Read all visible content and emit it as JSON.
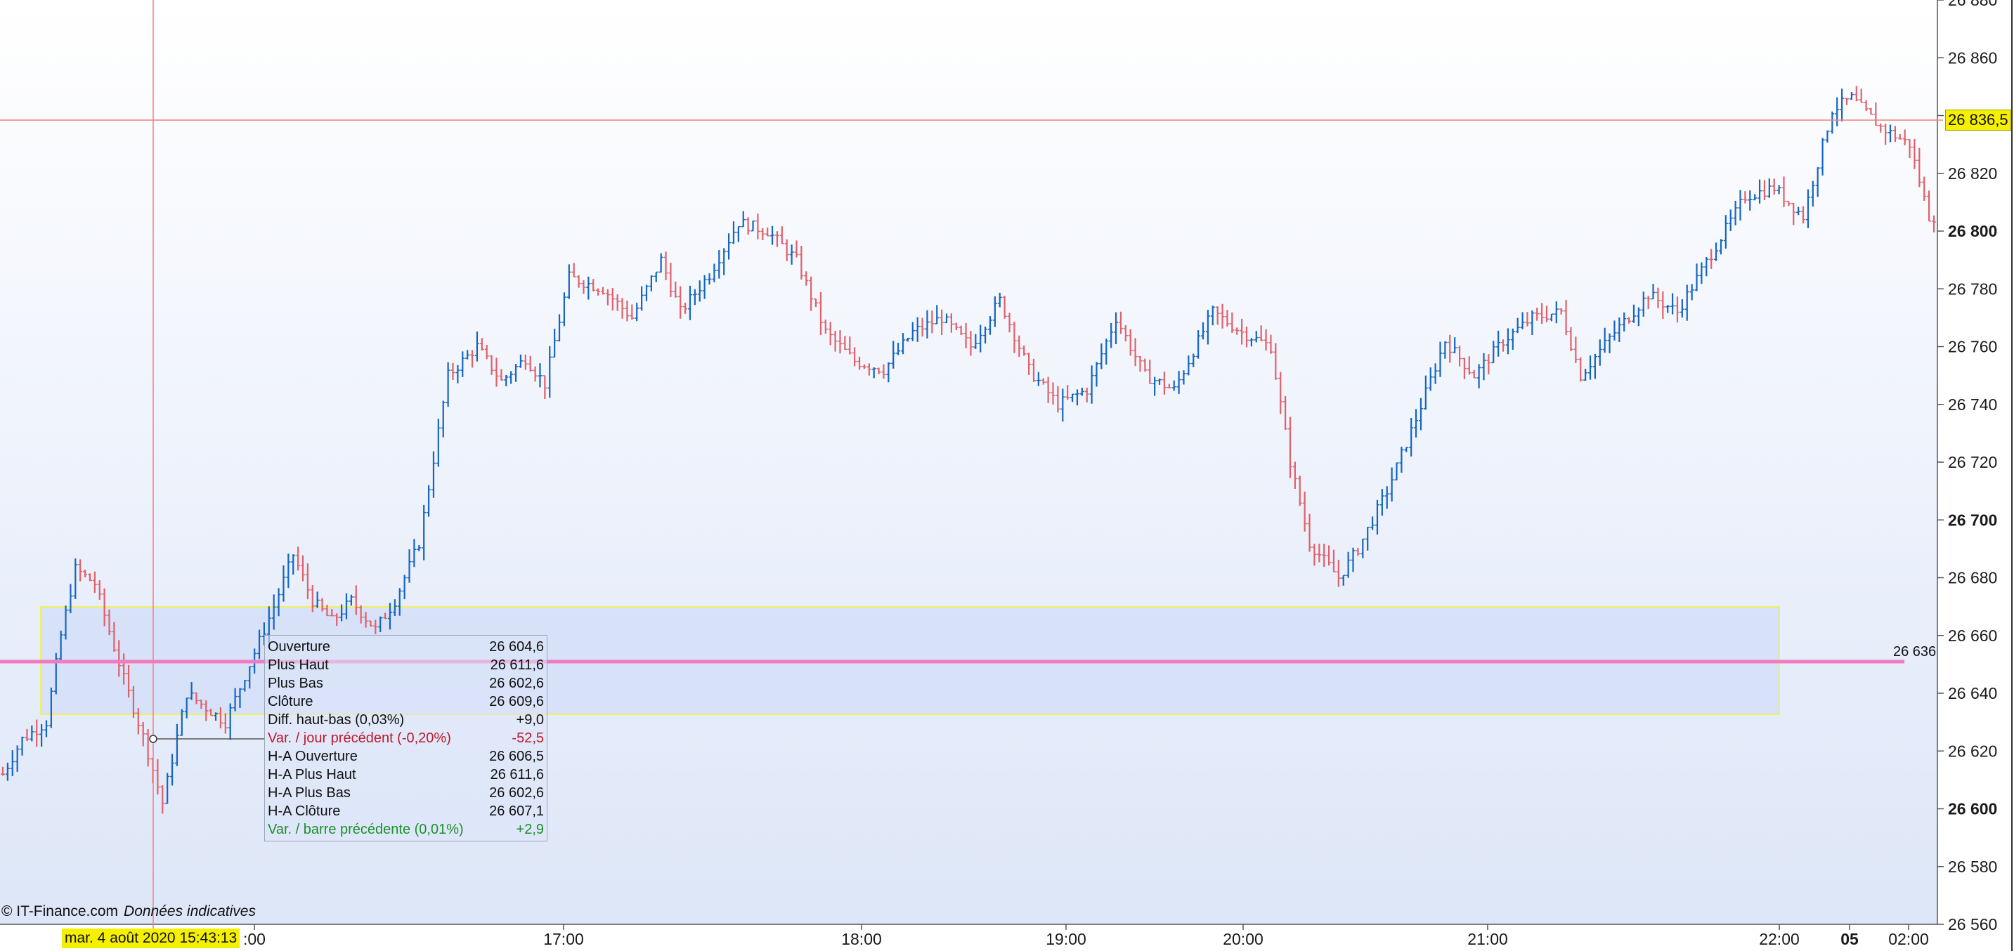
{
  "chart_data": {
    "type": "bar",
    "style": "OHLC bars (blue = up, red = down)",
    "x_ticks": [
      ":00",
      "17:00",
      "18:00",
      "19:00",
      "20:00",
      "21:00",
      "22:00",
      "05",
      "02:00"
    ],
    "x_ticks_bold": [
      "05"
    ],
    "ylim": [
      26560,
      26880
    ],
    "y_ticks": [
      "26 880",
      "26 860",
      "26 840",
      "26 820",
      "26 800",
      "26 780",
      "26 760",
      "26 740",
      "26 720",
      "26 700",
      "26 680",
      "26 660",
      "26 640",
      "26 620",
      "26 600",
      "26 580",
      "26 560"
    ],
    "y_ticks_bold": [
      "26 800",
      "26 700",
      "26 600"
    ],
    "grid": false,
    "up_color": "#1565c0",
    "down_color": "#e0606a",
    "close_path": [
      [
        0,
        26612
      ],
      [
        4,
        26624
      ],
      [
        9,
        26630
      ],
      [
        12,
        26660
      ],
      [
        15,
        26683
      ],
      [
        19,
        26678
      ],
      [
        25,
        26645
      ],
      [
        29,
        26625
      ],
      [
        33,
        26602
      ],
      [
        38,
        26640
      ],
      [
        42,
        26635
      ],
      [
        46,
        26630
      ],
      [
        51,
        26650
      ],
      [
        56,
        26670
      ],
      [
        60,
        26688
      ],
      [
        64,
        26672
      ],
      [
        68,
        26665
      ],
      [
        72,
        26672
      ],
      [
        77,
        26662
      ],
      [
        81,
        26672
      ],
      [
        86,
        26692
      ],
      [
        92,
        26750
      ],
      [
        98,
        26760
      ],
      [
        103,
        26748
      ],
      [
        108,
        26756
      ],
      [
        112,
        26747
      ],
      [
        117,
        26784
      ],
      [
        124,
        26780
      ],
      [
        130,
        26770
      ],
      [
        136,
        26790
      ],
      [
        140,
        26772
      ],
      [
        146,
        26785
      ],
      [
        152,
        26803
      ],
      [
        158,
        26800
      ],
      [
        164,
        26790
      ],
      [
        170,
        26765
      ],
      [
        176,
        26755
      ],
      [
        182,
        26752
      ],
      [
        188,
        26765
      ],
      [
        194,
        26770
      ],
      [
        200,
        26760
      ],
      [
        206,
        26776
      ],
      [
        212,
        26752
      ],
      [
        218,
        26740
      ],
      [
        224,
        26745
      ],
      [
        230,
        26770
      ],
      [
        236,
        26750
      ],
      [
        242,
        26745
      ],
      [
        250,
        26772
      ],
      [
        256,
        26765
      ],
      [
        262,
        26760
      ],
      [
        266,
        26720
      ],
      [
        270,
        26692
      ],
      [
        276,
        26680
      ],
      [
        280,
        26690
      ],
      [
        286,
        26710
      ],
      [
        292,
        26735
      ],
      [
        298,
        26762
      ],
      [
        304,
        26750
      ],
      [
        310,
        26762
      ],
      [
        316,
        26770
      ],
      [
        322,
        26772
      ],
      [
        326,
        26750
      ],
      [
        332,
        26763
      ],
      [
        340,
        26778
      ],
      [
        346,
        26772
      ],
      [
        354,
        26795
      ],
      [
        360,
        26812
      ],
      [
        366,
        26815
      ],
      [
        372,
        26805
      ],
      [
        378,
        26842
      ],
      [
        382,
        26846
      ],
      [
        388,
        26836
      ],
      [
        394,
        26830
      ],
      [
        398,
        26805
      ]
    ],
    "annotations": {
      "crosshair_date": "mar. 4 août 2020 15:43:13",
      "crosshair_price": "26 836,5",
      "horizontal_level": "26 636",
      "zone_range": [
        26615,
        26656
      ]
    }
  },
  "tooltip": {
    "rows": [
      {
        "label": "Ouverture",
        "value": "26 604,6",
        "tone": "normal"
      },
      {
        "label": "Plus Haut",
        "value": "26 611,6",
        "tone": "normal"
      },
      {
        "label": "Plus Bas",
        "value": "26 602,6",
        "tone": "normal"
      },
      {
        "label": "Clôture",
        "value": "26 609,6",
        "tone": "normal"
      },
      {
        "label": "Diff. haut-bas (0,03%)",
        "value": "+9,0",
        "tone": "normal"
      },
      {
        "label": "Var. / jour précédent (-0,20%)",
        "value": "-52,5",
        "tone": "neg"
      },
      {
        "label": "H-A Ouverture",
        "value": "26 606,5",
        "tone": "normal"
      },
      {
        "label": "H-A Plus Haut",
        "value": "26 611,6",
        "tone": "normal"
      },
      {
        "label": "H-A Plus Bas",
        "value": "26 602,6",
        "tone": "normal"
      },
      {
        "label": "H-A Clôture",
        "value": "26 607,1",
        "tone": "normal"
      },
      {
        "label": "Var. / barre précédente (0,01%)",
        "value": "+2,9",
        "tone": "pos"
      }
    ]
  },
  "footer": {
    "copyright": "© IT-Finance.com",
    "disclaimer": "Données indicatives"
  },
  "colors": {
    "background_top": "#ffffff",
    "background_bottom": "#dde6f8",
    "level_line": "#f07cc0",
    "zone_fill": "#d2def8",
    "zone_border": "#f0f060",
    "crosshair": "#f08080",
    "badge": "#f5f000"
  }
}
